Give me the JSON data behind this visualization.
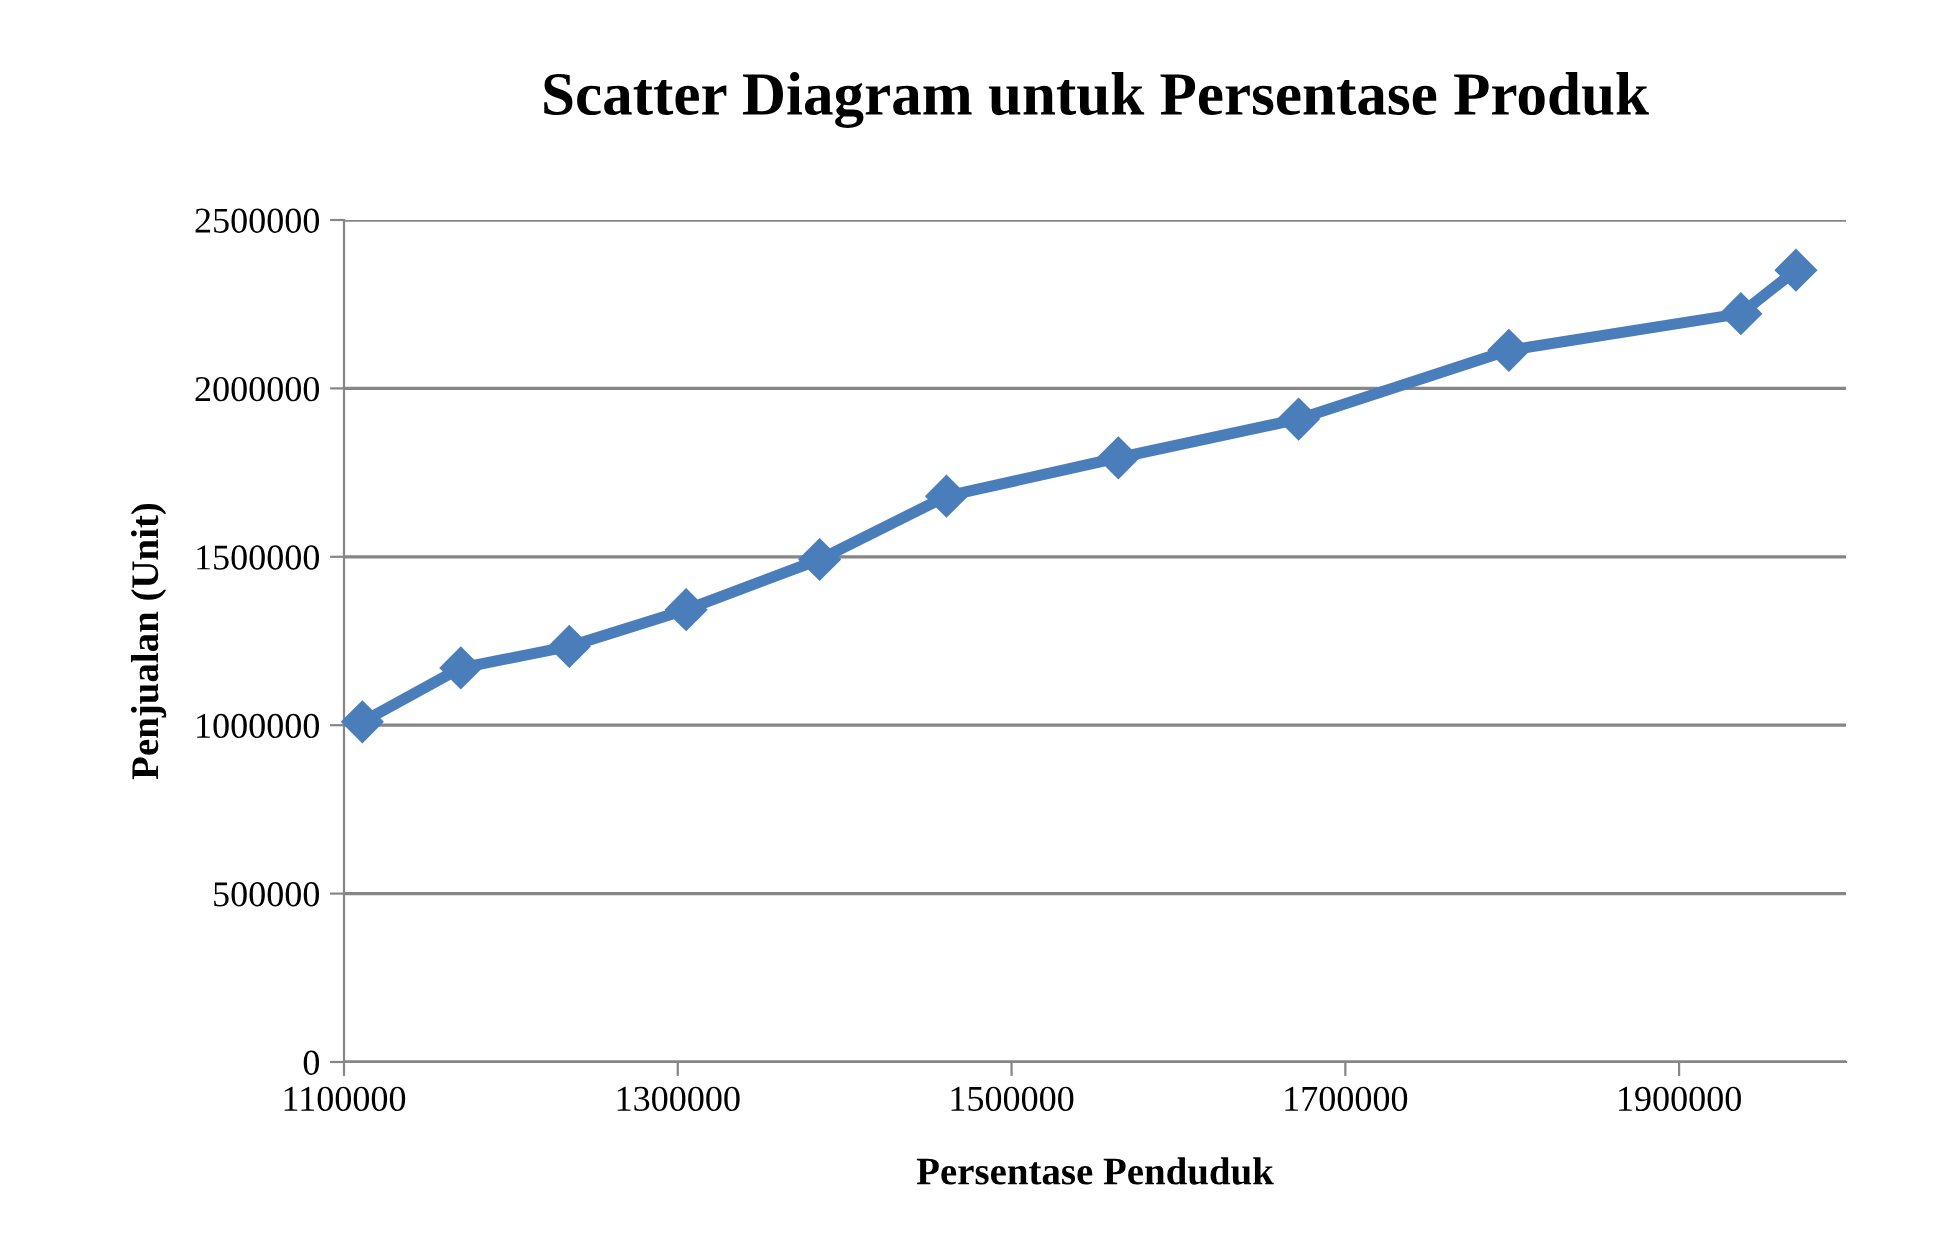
{
  "chart_data": {
    "type": "line",
    "title": "Scatter Diagram untuk Persentase Produk",
    "xlabel": "Persentase Penduduk",
    "ylabel": "Penjualan (Unit)",
    "x": [
      1111000,
      1170000,
      1235000,
      1305000,
      1385000,
      1461000,
      1564000,
      1672000,
      1798000,
      1937000,
      1970000
    ],
    "series": [
      {
        "color": "#4a7ebb",
        "values": [
          1010000,
          1170000,
          1234000,
          1343000,
          1492000,
          1680000,
          1794000,
          1909000,
          2113000,
          2222000,
          2351000
        ]
      }
    ],
    "xlim": [
      1100000,
      2000000
    ],
    "xticks": [
      1100000,
      1300000,
      1500000,
      1700000,
      1900000
    ],
    "ylim": [
      0,
      2500000
    ],
    "yticks": [
      0,
      500000,
      1000000,
      1500000,
      2000000,
      2500000
    ],
    "grid": "y",
    "marker": "diamond",
    "line_style": "solid"
  }
}
